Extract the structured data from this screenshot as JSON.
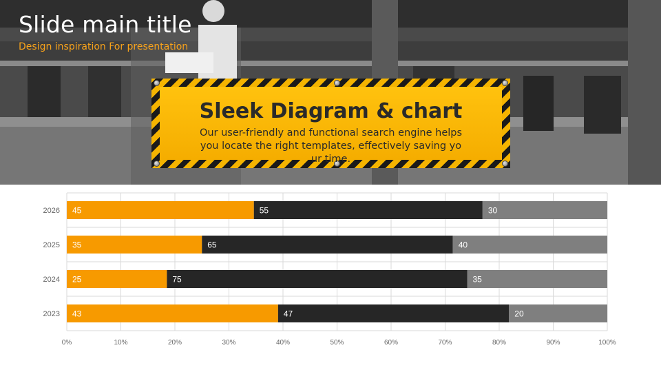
{
  "header": {
    "title": "Slide main title",
    "subtitle": "Design inspiration For presentation"
  },
  "callout": {
    "heading": "Sleek Diagram & chart",
    "body": "Our user-friendly and functional search engine helps you locate the right templates, effectively saving your time."
  },
  "colors": {
    "accent": "#f7a21b",
    "series_1": "#f79a00",
    "series_2": "#262626",
    "series_3": "#7f7f7f",
    "sign_yellow": "#ffc20e"
  },
  "chart_data": {
    "type": "bar",
    "orientation": "horizontal",
    "stacked": "percent",
    "categories": [
      "2026",
      "2025",
      "2024",
      "2023"
    ],
    "series": [
      {
        "values": [
          45,
          35,
          25,
          43
        ],
        "color": "#f79a00"
      },
      {
        "values": [
          55,
          65,
          75,
          47
        ],
        "color": "#262626"
      },
      {
        "values": [
          30,
          40,
          35,
          20
        ],
        "color": "#7f7f7f"
      }
    ],
    "x_ticks": [
      "0%",
      "10%",
      "20%",
      "30%",
      "40%",
      "50%",
      "60%",
      "70%",
      "80%",
      "90%",
      "100%"
    ],
    "xlim": [
      0,
      100
    ],
    "grid": true,
    "legend": "none",
    "data_labels": true
  }
}
